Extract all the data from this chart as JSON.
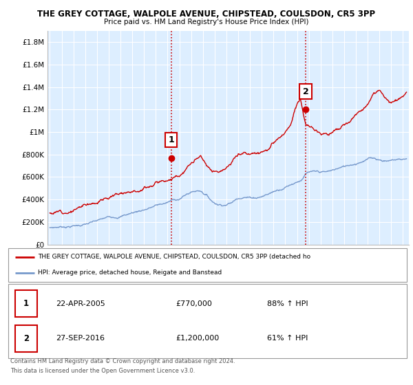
{
  "title1": "THE GREY COTTAGE, WALPOLE AVENUE, CHIPSTEAD, COULSDON, CR5 3PP",
  "title2": "Price paid vs. HM Land Registry's House Price Index (HPI)",
  "ylabel_ticks": [
    "£0",
    "£200K",
    "£400K",
    "£600K",
    "£800K",
    "£1M",
    "£1.2M",
    "£1.4M",
    "£1.6M",
    "£1.8M"
  ],
  "ylabel_values": [
    0,
    200000,
    400000,
    600000,
    800000,
    1000000,
    1200000,
    1400000,
    1600000,
    1800000
  ],
  "ylim": [
    0,
    1900000
  ],
  "xlim_start": 1994.8,
  "xlim_end": 2025.5,
  "sale1_x": 2005.31,
  "sale1_y": 770000,
  "sale1_label": "1",
  "sale1_date": "22-APR-2005",
  "sale1_price": "£770,000",
  "sale1_hpi": "88% ↑ HPI",
  "sale2_x": 2016.74,
  "sale2_y": 1200000,
  "sale2_label": "2",
  "sale2_date": "27-SEP-2016",
  "sale2_price": "£1,200,000",
  "sale2_hpi": "61% ↑ HPI",
  "hpi_legend": "HPI: Average price, detached house, Reigate and Banstead",
  "property_legend": "THE GREY COTTAGE, WALPOLE AVENUE, CHIPSTEAD, COULSDON, CR5 3PP (detached ho",
  "footnote1": "Contains HM Land Registry data © Crown copyright and database right 2024.",
  "footnote2": "This data is licensed under the Open Government Licence v3.0.",
  "red_color": "#cc0000",
  "blue_color": "#7799cc",
  "background_plot": "#ddeeff",
  "grid_color": "#ffffff",
  "dashed_line_color": "#cc0000",
  "prop_seed": 12,
  "hpi_seed": 7
}
